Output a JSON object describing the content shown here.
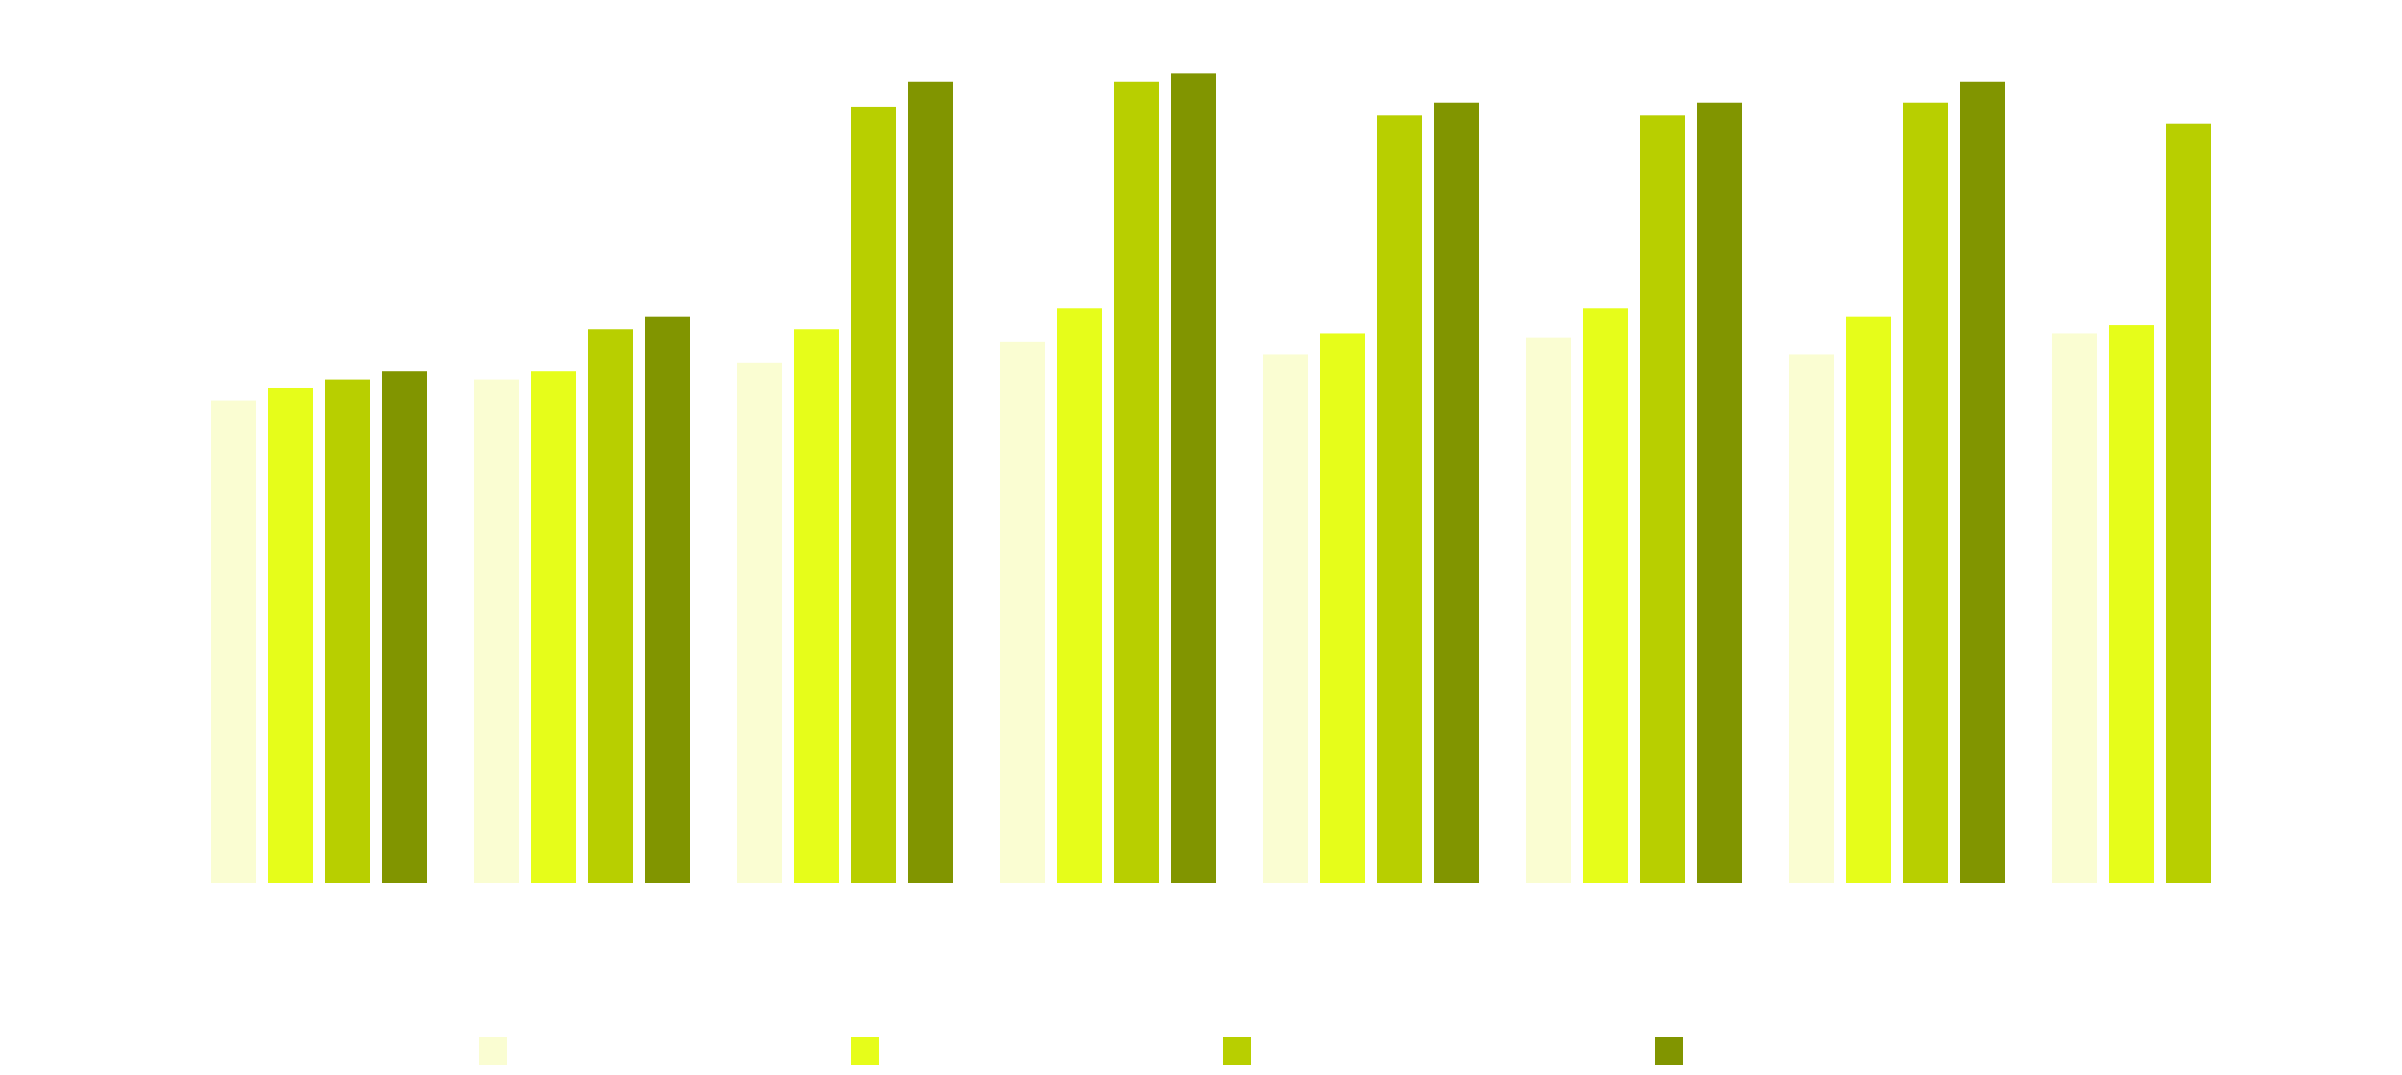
{
  "chart_data": {
    "type": "bar",
    "title": "",
    "xlabel": "",
    "ylabel": "",
    "categories": [
      "",
      "",
      "",
      "",
      "",
      "",
      "",
      ""
    ],
    "ylim": [
      0,
      100
    ],
    "grid": false,
    "legend_position": "bottom",
    "series": [
      {
        "color": "#fafdd2",
        "values": [
          57.5,
          60.0,
          62.0,
          64.5,
          63.0,
          65.0,
          63.0,
          65.5
        ]
      },
      {
        "color": "#e6fd1a",
        "values": [
          59.0,
          61.0,
          66.0,
          68.5,
          65.5,
          68.5,
          67.5,
          66.5
        ]
      },
      {
        "color": "#b8cf00",
        "values": [
          60.0,
          66.0,
          92.5,
          95.5,
          91.5,
          91.5,
          93.0,
          90.5
        ]
      },
      {
        "color": "#819500",
        "values": [
          61.0,
          67.5,
          95.5,
          96.5,
          93.0,
          93.0,
          95.5,
          null
        ]
      }
    ]
  }
}
